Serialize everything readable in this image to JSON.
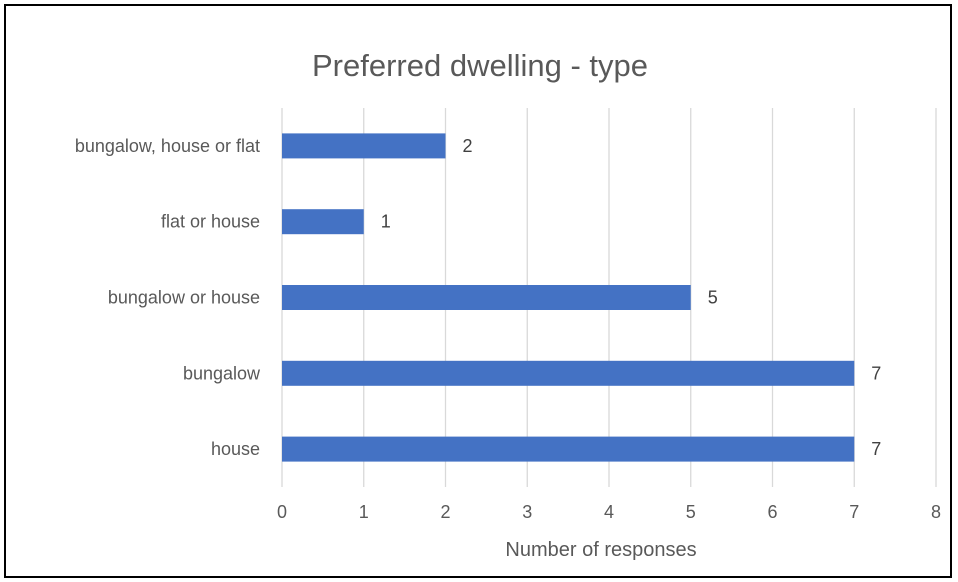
{
  "chart_data": {
    "type": "bar",
    "orientation": "horizontal",
    "title": "Preferred dwelling - type",
    "xlabel": "Number of responses",
    "ylabel": "",
    "categories": [
      "bungalow, house or flat",
      "flat or house",
      "bungalow or house",
      "bungalow",
      "house"
    ],
    "values": [
      2,
      1,
      5,
      7,
      7
    ],
    "xlim": [
      0,
      8
    ],
    "x_ticks": [
      0,
      1,
      2,
      3,
      4,
      5,
      6,
      7,
      8
    ],
    "grid": true,
    "legend": "none",
    "data_labels": true,
    "bar_color": "#4472C4",
    "grid_color": "#D9D9D9"
  }
}
